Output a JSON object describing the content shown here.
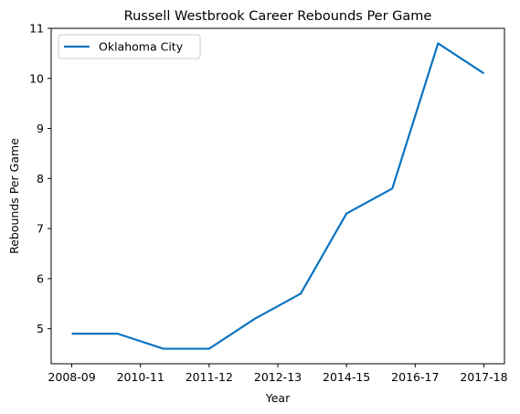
{
  "chart_data": {
    "type": "line",
    "title": "Russell Westbrook Career Rebounds Per Game",
    "xlabel": "Year",
    "ylabel": "Rebounds Per Game",
    "x_tick_labels": [
      "2008-09",
      "2010-11",
      "2011-12",
      "2012-13",
      "2014-15",
      "2016-17",
      "2017-18"
    ],
    "x_tick_positions": [
      0,
      1.5,
      3,
      4.5,
      6,
      7.5,
      9
    ],
    "y_ticks": [
      5,
      6,
      7,
      8,
      9,
      10,
      11
    ],
    "ylim": [
      4.3,
      11
    ],
    "xlim": [
      -0.45,
      9.45
    ],
    "grid": false,
    "legend_position": "top-left",
    "series": [
      {
        "name": "Oklahoma City",
        "color": "#0a74bf",
        "x": [
          0,
          1,
          2,
          3,
          4,
          5,
          6,
          7,
          8,
          9
        ],
        "values": [
          4.9,
          4.9,
          4.6,
          4.6,
          5.2,
          5.7,
          7.3,
          7.8,
          10.7,
          10.1
        ]
      }
    ]
  }
}
